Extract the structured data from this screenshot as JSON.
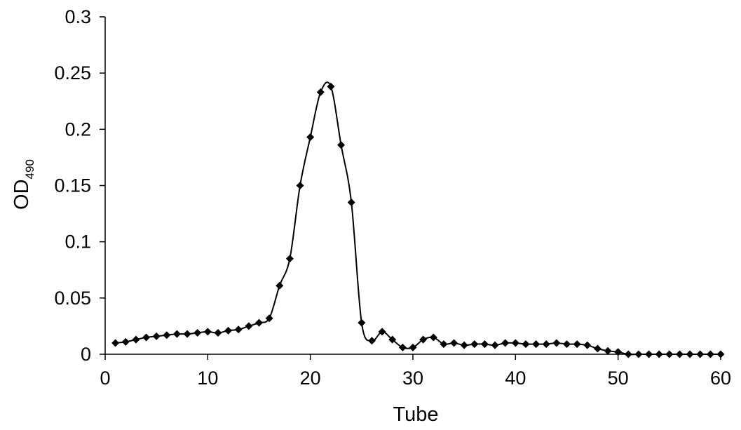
{
  "chart_data": {
    "type": "line",
    "title": "",
    "xlabel": "Tube",
    "ylabel": {
      "main": "OD",
      "subscript": "490"
    },
    "xlim": [
      0,
      60
    ],
    "ylim": [
      0,
      0.3
    ],
    "xticks": [
      0,
      10,
      20,
      30,
      40,
      50,
      60
    ],
    "xtick_labels": [
      "0",
      "10",
      "20",
      "30",
      "40",
      "50",
      "60"
    ],
    "yticks": [
      0,
      0.05,
      0.1,
      0.15,
      0.2,
      0.25,
      0.3
    ],
    "ytick_labels": [
      "0",
      "0.05",
      "0.1",
      "0.15",
      "0.2",
      "0.25",
      "0.3"
    ],
    "grid": false,
    "legend": "none",
    "marker": "diamond",
    "line_color": "#000000",
    "series": [
      {
        "x": [
          1,
          2,
          3,
          4,
          5,
          6,
          7,
          8,
          9,
          10,
          11,
          12,
          13,
          14,
          15,
          16,
          17,
          18,
          19,
          20,
          21,
          22,
          23,
          24,
          25,
          26,
          27,
          28,
          29,
          30,
          31,
          32,
          33,
          34,
          35,
          36,
          37,
          38,
          39,
          40,
          41,
          42,
          43,
          44,
          45,
          46,
          47,
          48,
          49,
          50,
          51,
          52,
          53,
          54,
          55,
          56,
          57,
          58,
          59,
          60
        ],
        "y": [
          0.01,
          0.011,
          0.013,
          0.015,
          0.016,
          0.017,
          0.018,
          0.018,
          0.019,
          0.02,
          0.019,
          0.021,
          0.022,
          0.025,
          0.028,
          0.032,
          0.061,
          0.085,
          0.15,
          0.193,
          0.233,
          0.238,
          0.186,
          0.135,
          0.028,
          0.012,
          0.02,
          0.013,
          0.006,
          0.006,
          0.013,
          0.015,
          0.009,
          0.01,
          0.008,
          0.009,
          0.009,
          0.008,
          0.01,
          0.01,
          0.009,
          0.009,
          0.009,
          0.01,
          0.009,
          0.009,
          0.008,
          0.005,
          0.003,
          0.002,
          0.0,
          0.0,
          0.0,
          0.0,
          0.0,
          0.0,
          0.0,
          0.0,
          0.0,
          0.0
        ]
      }
    ]
  }
}
